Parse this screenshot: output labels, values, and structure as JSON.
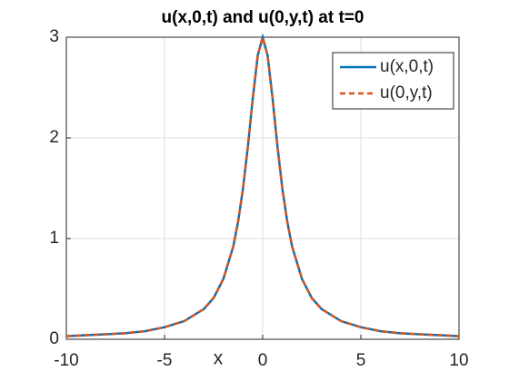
{
  "chart_data": {
    "type": "line",
    "title": "u(x,0,t) and u(0,y,t) at t=0",
    "xlabel": "x",
    "x": [
      -10,
      -9,
      -8,
      -7,
      -6,
      -5,
      -4,
      -3,
      -2.5,
      -2,
      -1.5,
      -1.25,
      -1,
      -0.75,
      -0.5,
      -0.25,
      0,
      0.25,
      0.5,
      0.75,
      1,
      1.25,
      1.5,
      2,
      2.5,
      3,
      4,
      5,
      6,
      7,
      8,
      9,
      10
    ],
    "series": [
      {
        "name": "u(x,0,t)",
        "color": "#0072BD",
        "line_style": "solid",
        "values": [
          0.03,
          0.04,
          0.05,
          0.06,
          0.08,
          0.12,
          0.18,
          0.3,
          0.41,
          0.6,
          0.92,
          1.17,
          1.5,
          1.92,
          2.4,
          2.82,
          3,
          2.82,
          2.4,
          1.92,
          1.5,
          1.17,
          0.92,
          0.6,
          0.41,
          0.3,
          0.18,
          0.12,
          0.08,
          0.06,
          0.05,
          0.04,
          0.03
        ]
      },
      {
        "name": "u(0,y,t)",
        "color": "#D95319",
        "line_style": "dashed",
        "values": [
          0.03,
          0.04,
          0.05,
          0.06,
          0.08,
          0.12,
          0.18,
          0.3,
          0.41,
          0.6,
          0.92,
          1.17,
          1.5,
          1.92,
          2.4,
          2.82,
          3,
          2.82,
          2.4,
          1.92,
          1.5,
          1.17,
          0.92,
          0.6,
          0.41,
          0.3,
          0.18,
          0.12,
          0.08,
          0.06,
          0.05,
          0.04,
          0.03
        ]
      }
    ],
    "xlim": [
      -10,
      10
    ],
    "xticks": [
      -10,
      -5,
      0,
      5,
      10
    ],
    "ylim": [
      0,
      3
    ],
    "yticks": [
      0,
      1,
      2,
      3
    ],
    "grid": true,
    "legend": "northeast"
  }
}
